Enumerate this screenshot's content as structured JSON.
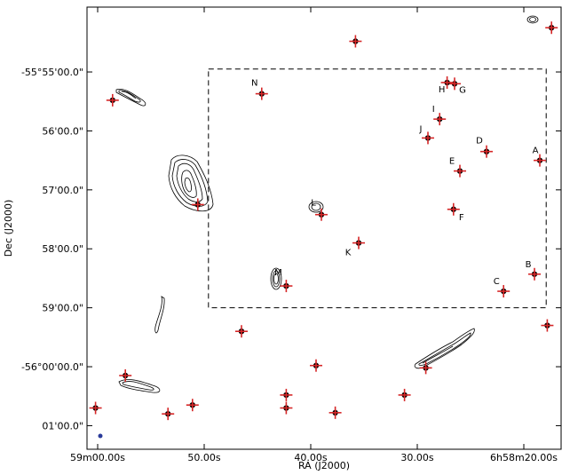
{
  "chart_data": {
    "type": "scatter",
    "title": "",
    "xlabel": "RA (J2000)",
    "ylabel": "Dec (J2000)",
    "x_tick_labels": [
      "59m00.00s",
      "50.00s",
      "40.00s",
      "30.00s",
      "6h58m20.00s"
    ],
    "y_tick_labels": [
      "-55°55'00.0\"",
      "56'00.0\"",
      "57'00.0\"",
      "58'00.0\"",
      "59'00.0\"",
      "-56°00'00.0\"",
      "01'00.0\""
    ],
    "grid": false,
    "colors": {
      "marker": "#d62728",
      "contour": "#000000",
      "box": "#000000",
      "beam": "#2a3b9a"
    },
    "labeled_sources": [
      {
        "name": "A",
        "ra_s": 18.5,
        "dec_min": 56.5
      },
      {
        "name": "B",
        "ra_s": 19.0,
        "dec_min": 58.43
      },
      {
        "name": "C",
        "ra_s": 21.9,
        "dec_min": 58.72
      },
      {
        "name": "D",
        "ra_s": 23.5,
        "dec_min": 56.35
      },
      {
        "name": "E",
        "ra_s": 26.0,
        "dec_min": 56.68
      },
      {
        "name": "F",
        "ra_s": 26.6,
        "dec_min": 57.33
      },
      {
        "name": "G",
        "ra_s": 26.5,
        "dec_min": 55.2
      },
      {
        "name": "H",
        "ra_s": 27.2,
        "dec_min": 55.18
      },
      {
        "name": "I",
        "ra_s": 27.9,
        "dec_min": 55.8
      },
      {
        "name": "J",
        "ra_s": 29.0,
        "dec_min": 56.12
      },
      {
        "name": "K",
        "ra_s": 35.5,
        "dec_min": 57.9
      },
      {
        "name": "L",
        "ra_s": 39.0,
        "dec_min": 57.42
      },
      {
        "name": "M",
        "ra_s": 42.3,
        "dec_min": 58.63
      },
      {
        "name": "N",
        "ra_s": 44.6,
        "dec_min": 55.37
      }
    ],
    "other_sources": [
      {
        "ra_s": 17.4,
        "dec_min": 54.25
      },
      {
        "ra_s": 35.8,
        "dec_min": 54.48
      },
      {
        "ra_s": 58.6,
        "dec_min": 55.48
      },
      {
        "ra_s": 50.6,
        "dec_min": 57.25
      },
      {
        "ra_s": 17.8,
        "dec_min": 59.3
      },
      {
        "ra_s": 46.5,
        "dec_min": 59.4
      },
      {
        "ra_s": 39.5,
        "dec_min": 59.98
      },
      {
        "ra_s": 29.2,
        "dec_min": 60.02
      },
      {
        "ra_s": 42.3,
        "dec_min": 60.48
      },
      {
        "ra_s": 42.3,
        "dec_min": 60.7
      },
      {
        "ra_s": 31.2,
        "dec_min": 60.48
      },
      {
        "ra_s": 37.7,
        "dec_min": 60.78
      },
      {
        "ra_s": 51.1,
        "dec_min": 60.65
      },
      {
        "ra_s": 53.4,
        "dec_min": 60.8
      },
      {
        "ra_s": 57.4,
        "dec_min": 60.15
      },
      {
        "ra_s": 60.2,
        "dec_min": 60.7
      }
    ],
    "dashed_box": {
      "ra_s_range": [
        17.9,
        49.6
      ],
      "dec_min_range": [
        54.95,
        59.0
      ]
    },
    "xlim_ra_s": [
      61.0,
      16.5
    ],
    "ylim_dec_min": [
      53.9,
      61.4
    ]
  }
}
